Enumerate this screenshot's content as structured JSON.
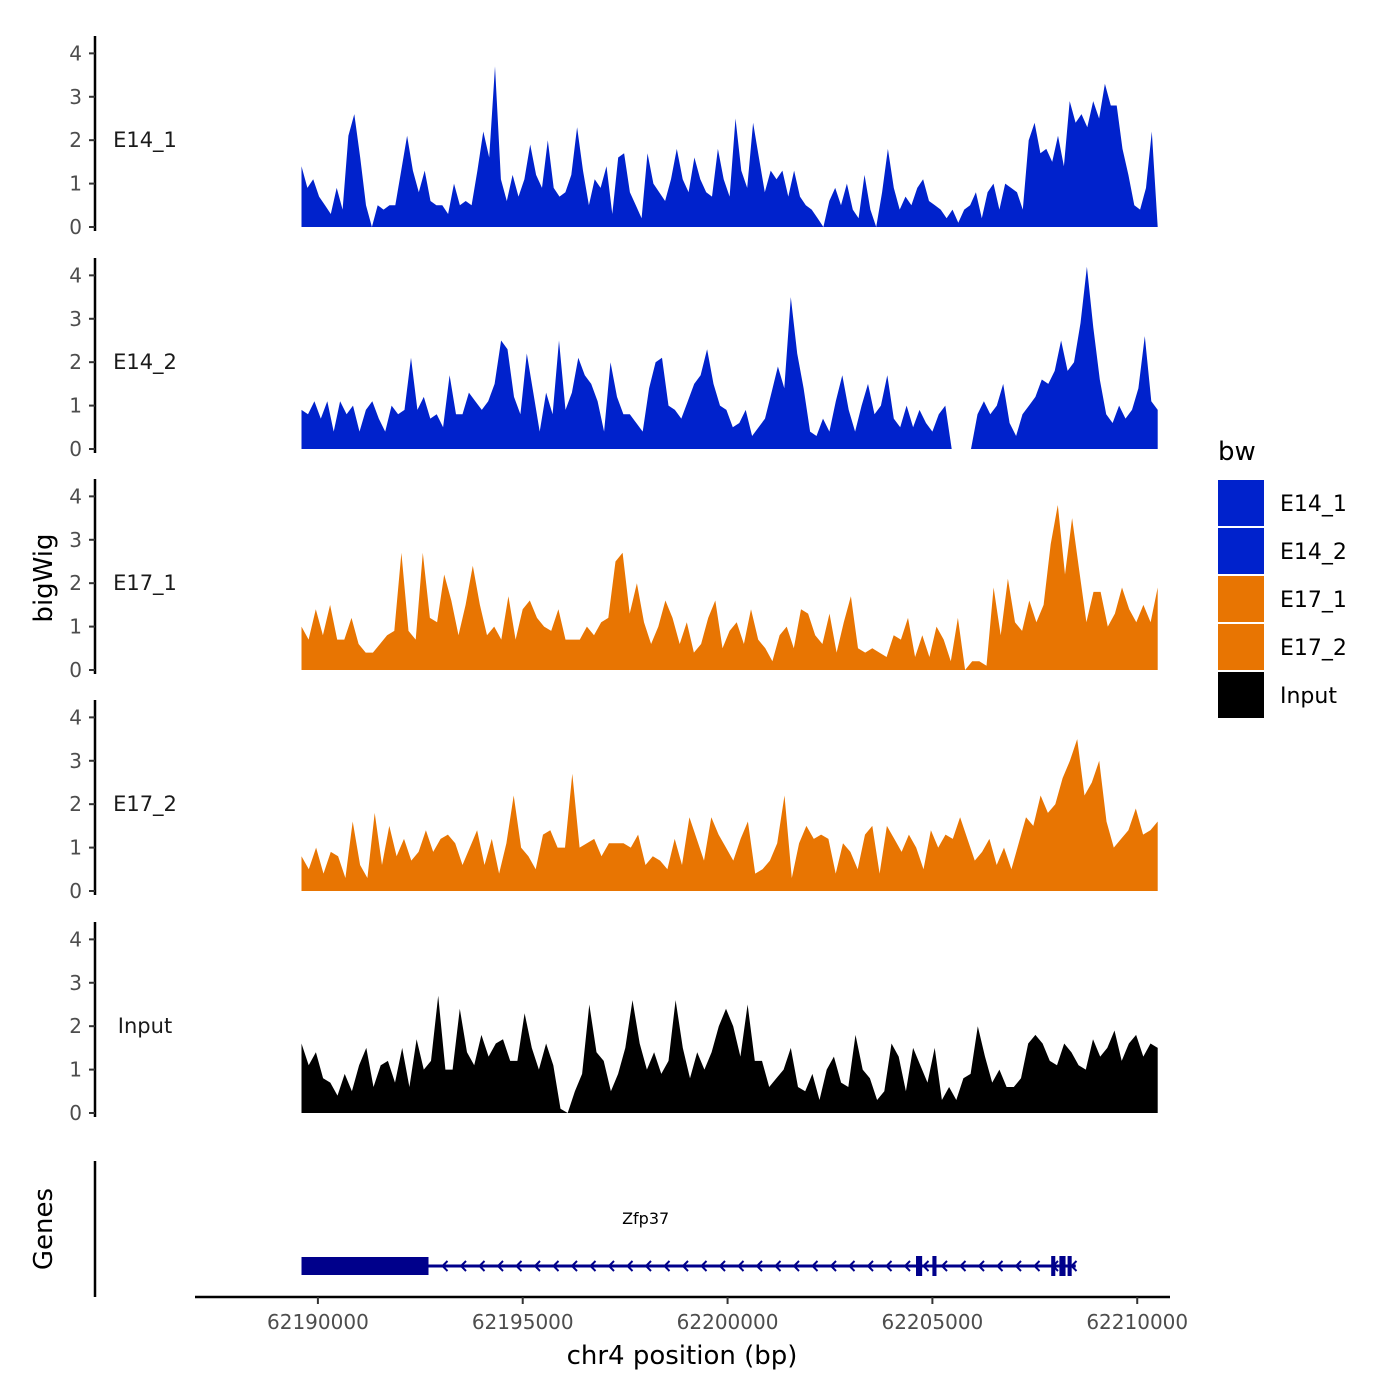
{
  "chart_data": {
    "type": "area",
    "ylabel": "bigWig",
    "xlabel": "chr4 position (bp)",
    "xlim": [
      62187000,
      62210800
    ],
    "x_range": [
      62189600,
      62210500
    ],
    "ylim": [
      0,
      4.4
    ],
    "y_ticks": [
      0,
      1,
      2,
      3,
      4
    ],
    "x_ticks": [
      62190000,
      62195000,
      62200000,
      62205000,
      62210000
    ],
    "x_tick_labels": [
      "62190000",
      "62195000",
      "62200000",
      "62205000",
      "62210000"
    ],
    "legend": {
      "title": "bw",
      "position": "right",
      "entries": [
        {
          "label": "E14_1",
          "color": "#0022CC"
        },
        {
          "label": "E14_2",
          "color": "#0022CC"
        },
        {
          "label": "E17_1",
          "color": "#E87502"
        },
        {
          "label": "E17_2",
          "color": "#E87502"
        },
        {
          "label": "Input",
          "color": "#000000"
        }
      ]
    },
    "series": [
      {
        "name": "E14_1",
        "label": "E14_1",
        "color": "#0022CC",
        "values": [
          1.4,
          0.9,
          1.1,
          0.7,
          0.5,
          0.3,
          0.9,
          0.4,
          2.1,
          2.6,
          1.6,
          0.5,
          0,
          0.5,
          0.4,
          0.5,
          0.5,
          1.3,
          2.1,
          1.3,
          0.8,
          1.3,
          0.6,
          0.5,
          0.5,
          0.3,
          1.0,
          0.5,
          0.6,
          0.5,
          1.3,
          2.2,
          1.6,
          3.7,
          1.1,
          0.6,
          1.2,
          0.7,
          1.1,
          1.9,
          1.2,
          0.9,
          2.0,
          0.9,
          0.7,
          0.8,
          1.2,
          2.3,
          1.3,
          0.5,
          1.1,
          0.9,
          1.4,
          0.3,
          1.6,
          1.7,
          0.8,
          0.5,
          0.2,
          1.7,
          1.0,
          0.8,
          0.6,
          1.1,
          1.8,
          1.1,
          0.8,
          1.6,
          1.1,
          0.8,
          0.7,
          1.8,
          1.1,
          0.7,
          2.5,
          1.3,
          0.9,
          2.4,
          1.6,
          0.8,
          1.3,
          1.1,
          1.3,
          0.7,
          1.3,
          0.7,
          0.5,
          0.4,
          0.2,
          0,
          0.6,
          0.9,
          0.5,
          1.0,
          0.4,
          0.2,
          1.2,
          0.4,
          0,
          0.8,
          1.8,
          0.9,
          0.4,
          0.7,
          0.5,
          0.9,
          1.1,
          0.6,
          0.5,
          0.4,
          0.2,
          0.4,
          0.1,
          0.4,
          0.5,
          0.8,
          0.2,
          0.8,
          1.0,
          0.4,
          1.0,
          0.9,
          0.8,
          0.4,
          2.0,
          2.4,
          1.7,
          1.8,
          1.5,
          2.1,
          1.4,
          2.9,
          2.4,
          2.6,
          2.3,
          2.9,
          2.5,
          3.3,
          2.8,
          2.8,
          1.8,
          1.2,
          0.5,
          0.4,
          0.9,
          2.2,
          0
        ]
      },
      {
        "name": "E14_2",
        "label": "E14_2",
        "color": "#0022CC",
        "values": [
          0.9,
          0.8,
          1.1,
          0.7,
          1.1,
          0.4,
          1.1,
          0.8,
          1.0,
          0.4,
          0.9,
          1.1,
          0.7,
          0.4,
          1.0,
          0.8,
          0.9,
          2.1,
          0.9,
          1.2,
          0.7,
          0.8,
          0.5,
          1.7,
          0.8,
          0.8,
          1.3,
          1.1,
          0.9,
          1.1,
          1.5,
          2.5,
          2.3,
          1.2,
          0.8,
          2.2,
          1.3,
          0.4,
          1.3,
          0.8,
          2.5,
          0.9,
          1.3,
          2.1,
          1.7,
          1.5,
          1.1,
          0.4,
          2.0,
          1.2,
          0.8,
          0.8,
          0.6,
          0.4,
          1.4,
          2.0,
          2.1,
          1.0,
          0.9,
          0.7,
          1.1,
          1.5,
          1.7,
          2.3,
          1.5,
          1.0,
          0.9,
          0.5,
          0.6,
          0.9,
          0.3,
          0.5,
          0.7,
          1.3,
          1.9,
          1.4,
          3.5,
          2.2,
          1.4,
          0.4,
          0.3,
          0.7,
          0.4,
          1.1,
          1.7,
          0.9,
          0.4,
          1.0,
          1.5,
          0.8,
          1.0,
          1.7,
          0.7,
          0.5,
          1.0,
          0.5,
          0.9,
          0.6,
          0.4,
          0.8,
          1.0,
          0,
          0,
          0,
          0,
          0.8,
          1.1,
          0.8,
          1.0,
          1.5,
          0.6,
          0.3,
          0.8,
          1.0,
          1.2,
          1.6,
          1.5,
          1.8,
          2.5,
          1.8,
          2.0,
          2.9,
          4.2,
          2.8,
          1.6,
          0.8,
          0.6,
          1.0,
          0.7,
          0.9,
          1.4,
          2.6,
          1.1,
          0.9
        ]
      },
      {
        "name": "E17_1",
        "label": "E17_1",
        "color": "#E87502",
        "values": [
          1.0,
          0.7,
          1.4,
          0.8,
          1.5,
          0.7,
          0.7,
          1.2,
          0.6,
          0.4,
          0.4,
          0.6,
          0.8,
          0.9,
          2.7,
          0.9,
          0.7,
          2.7,
          1.2,
          1.1,
          2.2,
          1.6,
          0.8,
          1.5,
          2.4,
          1.5,
          0.8,
          1.0,
          0.7,
          1.7,
          0.7,
          1.4,
          1.6,
          1.2,
          1.0,
          0.9,
          1.4,
          0.7,
          0.7,
          0.7,
          1.0,
          0.8,
          1.1,
          1.2,
          2.5,
          2.7,
          1.3,
          2.0,
          1.1,
          0.6,
          1.0,
          1.6,
          1.2,
          0.6,
          1.1,
          0.4,
          0.6,
          1.2,
          1.6,
          0.5,
          0.9,
          1.1,
          0.6,
          1.4,
          0.7,
          0.5,
          0.2,
          0.8,
          1.0,
          0.5,
          1.4,
          1.3,
          0.8,
          0.6,
          1.3,
          0.4,
          1.1,
          1.7,
          0.5,
          0.4,
          0.5,
          0.4,
          0.3,
          0.8,
          0.7,
          1.2,
          0.3,
          0.8,
          0.3,
          1.0,
          0.7,
          0.2,
          1.2,
          0,
          0.2,
          0.2,
          0.1,
          1.9,
          0.8,
          2.1,
          1.1,
          0.9,
          1.6,
          1.1,
          1.5,
          2.9,
          3.8,
          2.2,
          3.5,
          2.3,
          1.1,
          1.8,
          1.8,
          1.0,
          1.3,
          1.9,
          1.4,
          1.1,
          1.5,
          1.1,
          1.9
        ]
      },
      {
        "name": "E17_2",
        "label": "E17_2",
        "color": "#E87502",
        "values": [
          0.8,
          0.5,
          1.0,
          0.4,
          0.9,
          0.8,
          0.3,
          1.6,
          0.6,
          0.3,
          1.8,
          0.6,
          1.5,
          0.8,
          1.2,
          0.7,
          0.9,
          1.4,
          0.9,
          1.2,
          1.3,
          1.1,
          0.6,
          1.0,
          1.4,
          0.6,
          1.2,
          0.4,
          1.1,
          2.2,
          1.0,
          0.8,
          0.5,
          1.3,
          1.4,
          1.0,
          1.0,
          2.7,
          1.0,
          1.1,
          1.2,
          0.8,
          1.1,
          1.1,
          1.1,
          1.0,
          1.3,
          0.6,
          0.8,
          0.7,
          0.5,
          1.2,
          0.6,
          1.7,
          1.2,
          0.7,
          1.7,
          1.3,
          1.0,
          0.7,
          1.2,
          1.6,
          0.4,
          0.5,
          0.7,
          1.1,
          2.2,
          0.3,
          1.1,
          1.5,
          1.2,
          1.3,
          1.2,
          0.4,
          1.1,
          0.9,
          0.5,
          1.3,
          1.5,
          0.4,
          1.5,
          1.2,
          0.9,
          1.3,
          1.0,
          0.5,
          1.4,
          1.0,
          1.3,
          1.2,
          1.7,
          1.2,
          0.7,
          0.9,
          1.2,
          0.6,
          1.0,
          0.5,
          1.1,
          1.7,
          1.5,
          2.2,
          1.8,
          2.0,
          2.6,
          3.0,
          3.5,
          2.2,
          2.5,
          3.0,
          1.6,
          1.0,
          1.2,
          1.4,
          1.9,
          1.3,
          1.4,
          1.6
        ]
      },
      {
        "name": "Input",
        "label": "Input",
        "color": "#000000",
        "values": [
          1.6,
          1.1,
          1.4,
          0.8,
          0.7,
          0.4,
          0.9,
          0.5,
          1.1,
          1.5,
          0.6,
          1.1,
          1.2,
          0.7,
          1.5,
          0.6,
          1.7,
          1.0,
          1.2,
          2.7,
          1.0,
          1.0,
          2.4,
          1.4,
          1.1,
          1.8,
          1.3,
          1.6,
          1.7,
          1.2,
          1.2,
          2.3,
          1.5,
          1.0,
          1.6,
          1.1,
          0.1,
          0,
          0.5,
          0.9,
          2.5,
          1.4,
          1.2,
          0.5,
          0.9,
          1.5,
          2.6,
          1.6,
          1.0,
          1.4,
          0.9,
          1.2,
          2.6,
          1.5,
          0.8,
          1.4,
          1.0,
          1.4,
          2.0,
          2.4,
          2.0,
          1.3,
          2.5,
          1.2,
          1.2,
          0.6,
          0.8,
          1.0,
          1.5,
          0.6,
          0.5,
          0.9,
          0.3,
          1.0,
          1.3,
          0.7,
          0.6,
          1.8,
          1.0,
          0.8,
          0.3,
          0.5,
          1.6,
          1.3,
          0.5,
          1.5,
          1.1,
          0.7,
          1.5,
          0.3,
          0.6,
          0.3,
          0.8,
          0.9,
          2.0,
          1.3,
          0.7,
          1.0,
          0.6,
          0.6,
          0.8,
          1.6,
          1.8,
          1.6,
          1.2,
          1.1,
          1.6,
          1.4,
          1.1,
          1.0,
          1.7,
          1.3,
          1.5,
          1.9,
          1.2,
          1.6,
          1.8,
          1.3,
          1.6,
          1.5
        ]
      }
    ],
    "genes": {
      "label": "Genes",
      "color": "#00008B",
      "items": [
        {
          "name": "Zfp37",
          "start": 62189600,
          "end": 62208500,
          "strand": "-",
          "label_pos": 62198000,
          "exons": [
            [
              62189600,
              62192700
            ],
            [
              62204600,
              62204750
            ],
            [
              62205000,
              62205100
            ],
            [
              62207900,
              62208000
            ],
            [
              62208100,
              62208250
            ],
            [
              62208300,
              62208400
            ]
          ]
        }
      ]
    }
  }
}
